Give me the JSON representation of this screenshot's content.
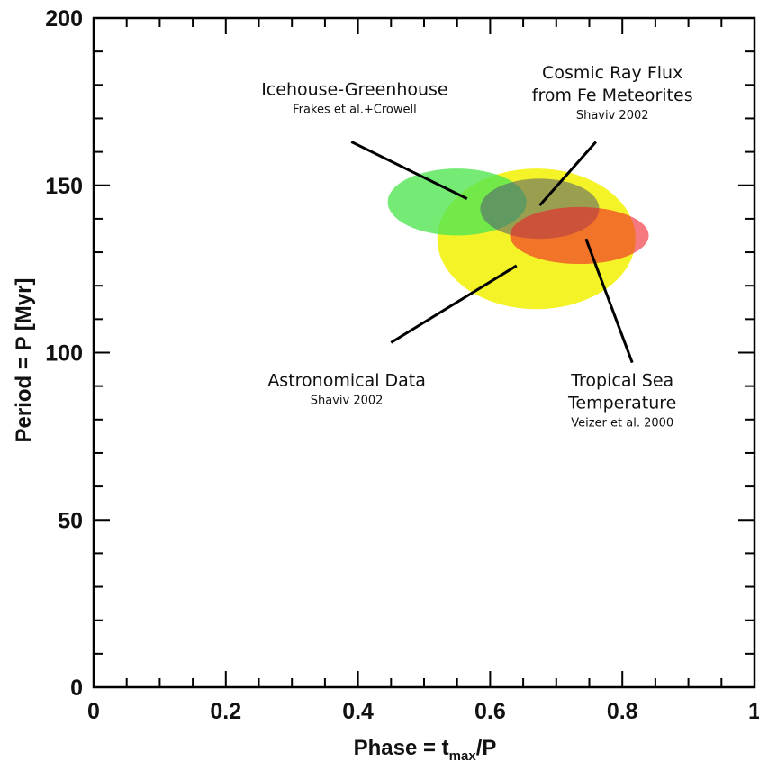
{
  "chart_data": {
    "type": "scatter",
    "xlabel": "Phase = t",
    "xlabel_sub": "max",
    "xlabel_tail": "/P",
    "ylabel": "Period = P [Myr]",
    "xlim": [
      0,
      1
    ],
    "ylim": [
      0,
      200
    ],
    "xticks": [
      "0",
      "0.2",
      "0.4",
      "0.6",
      "0.8",
      "1"
    ],
    "xtick_values": [
      0,
      0.2,
      0.4,
      0.6,
      0.8,
      1
    ],
    "yticks": [
      "0",
      "50",
      "100",
      "150",
      "200"
    ],
    "ytick_values": [
      0,
      50,
      100,
      150,
      200
    ],
    "regions": [
      {
        "name": "Astronomical Data",
        "cx": 0.67,
        "cy": 134,
        "rx": 0.15,
        "ry": 21,
        "color": "#f2f20f",
        "opacity": 0.9
      },
      {
        "name": "Icehouse-Greenhouse",
        "cx": 0.55,
        "cy": 145,
        "rx": 0.105,
        "ry": 10,
        "color": "#52e652",
        "opacity": 0.8
      },
      {
        "name": "Cosmic Ray Flux",
        "cx": 0.675,
        "cy": 143,
        "rx": 0.09,
        "ry": 9,
        "color": "#505a72",
        "opacity": 0.55
      },
      {
        "name": "Tropical Sea Temperature",
        "cx": 0.735,
        "cy": 135,
        "rx": 0.105,
        "ry": 8.5,
        "color": "#f0202c",
        "opacity": 0.6
      }
    ],
    "annotations": [
      {
        "lines": [
          "Icehouse-Greenhouse"
        ],
        "sub": [
          "Frakes et al.+Crowell"
        ],
        "x": 0.395,
        "y": 177,
        "pointer": [
          [
            0.39,
            163
          ],
          [
            0.565,
            146
          ]
        ]
      },
      {
        "lines": [
          "Cosmic Ray Flux",
          "from Fe Meteorites"
        ],
        "sub": [
          "Shaviv 2002"
        ],
        "x": 0.785,
        "y": 182,
        "pointer": [
          [
            0.76,
            163
          ],
          [
            0.675,
            144
          ]
        ]
      },
      {
        "lines": [
          "Astronomical Data"
        ],
        "sub": [
          "Shaviv 2002"
        ],
        "x": 0.383,
        "y": 90,
        "pointer": [
          [
            0.45,
            103
          ],
          [
            0.64,
            126
          ]
        ]
      },
      {
        "lines": [
          "Tropical Sea",
          "Temperature"
        ],
        "sub": [
          "Veizer et al. 2000"
        ],
        "x": 0.8,
        "y": 90,
        "pointer": [
          [
            0.815,
            97
          ],
          [
            0.745,
            134
          ]
        ]
      }
    ]
  }
}
